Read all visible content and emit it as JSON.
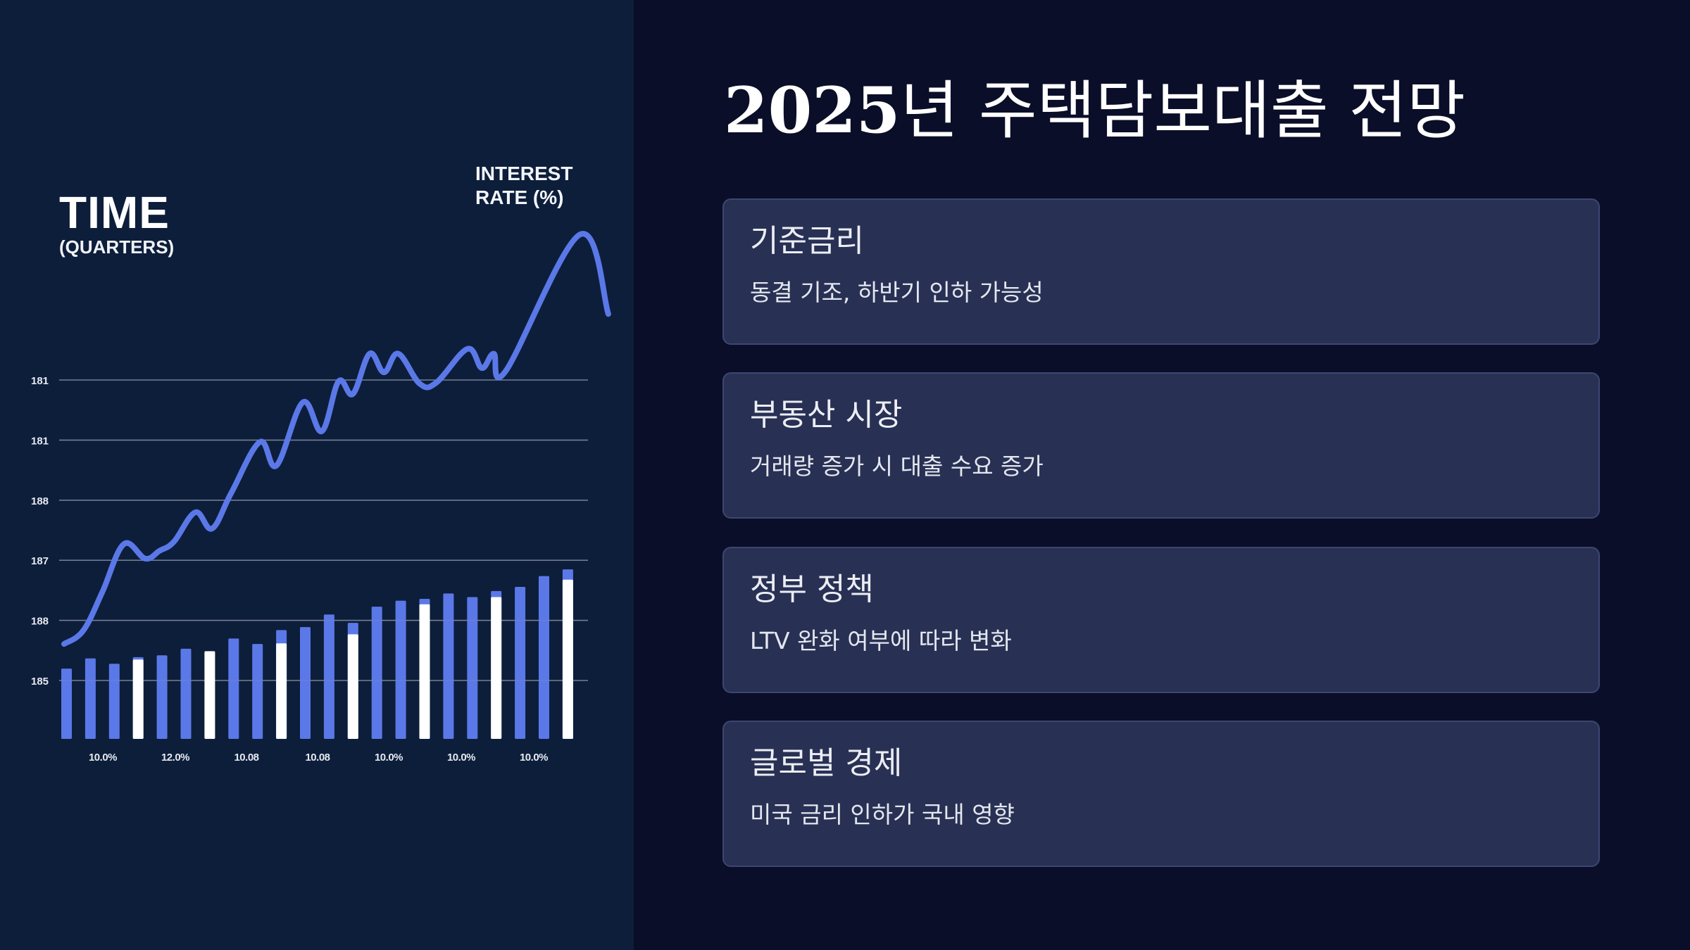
{
  "title": {
    "year": "2025",
    "rest": "년 주택담보대출 전망"
  },
  "cards": [
    {
      "title": "기준금리",
      "description": "동결 기조, 하반기 인하 가능성"
    },
    {
      "title": "부동산 시장",
      "description": "거래량 증가 시 대출 수요 증가"
    },
    {
      "title": "정부 정책",
      "description": "LTV 완화 여부에 따라 변화"
    },
    {
      "title": "글로벌 경제",
      "description": "미국 금리 인하가 국내 영향"
    }
  ],
  "colors": {
    "left_bg": "#0d1e3a",
    "right_bg": "#0a0e28",
    "card_bg": "#283154",
    "card_border": "#3c4670",
    "accent_blue": "#5b78e8",
    "bar_white": "#ffffff",
    "gridline": "#8a93a8"
  },
  "chart_data": {
    "type": "bar",
    "title": "",
    "axis_titles": {
      "time_main": "TIME",
      "time_sub": "(QUARTERS)",
      "rate_line1": "INTEREST",
      "rate_line2": "RATE (%)"
    },
    "xlabel": "TIME (QUARTERS)",
    "ylabel": "INTEREST RATE (%)",
    "y_tick_labels": [
      "181",
      "181",
      "188",
      "187",
      "188",
      "185"
    ],
    "x_tick_labels": [
      "10.0%",
      "12.0%",
      "10.08",
      "10.08",
      "10.0%",
      "10.0%",
      "10.0%"
    ],
    "grid": true,
    "legend": null,
    "bars": [
      {
        "index": 1,
        "blue": 0.2,
        "white": null
      },
      {
        "index": 2,
        "blue": 0.37,
        "white": null
      },
      {
        "index": 3,
        "blue": 0.28,
        "white": null
      },
      {
        "index": 4,
        "blue": 0.39,
        "white": 0.35
      },
      {
        "index": 5,
        "blue": 0.42,
        "white": null
      },
      {
        "index": 6,
        "blue": 0.53,
        "white": null
      },
      {
        "index": 7,
        "blue": null,
        "white": 0.49
      },
      {
        "index": 8,
        "blue": 0.7,
        "white": null
      },
      {
        "index": 9,
        "blue": 0.61,
        "white": null
      },
      {
        "index": 10,
        "blue": 0.84,
        "white": 0.62
      },
      {
        "index": 11,
        "blue": 0.89,
        "white": null
      },
      {
        "index": 12,
        "blue": 1.1,
        "white": null
      },
      {
        "index": 13,
        "blue": 0.96,
        "white": 0.77
      },
      {
        "index": 14,
        "blue": 1.23,
        "white": null
      },
      {
        "index": 15,
        "blue": 1.33,
        "white": null
      },
      {
        "index": 16,
        "blue": 1.36,
        "white": 1.27
      },
      {
        "index": 17,
        "blue": 1.45,
        "white": null
      },
      {
        "index": 18,
        "blue": 1.39,
        "white": null
      },
      {
        "index": 19,
        "blue": 1.49,
        "white": 1.39
      },
      {
        "index": 20,
        "blue": 1.56,
        "white": null
      },
      {
        "index": 21,
        "blue": 1.74,
        "white": null
      },
      {
        "index": 22,
        "blue": 1.85,
        "white": 1.68
      }
    ],
    "bar_units_note": "bar heights expressed in gridline units above baseline (1 unit = one gridline spacing)",
    "line_series": {
      "name": "Interest Rate",
      "points": [
        [
          0.0,
          1.58
        ],
        [
          0.8,
          1.8
        ],
        [
          1.6,
          2.44
        ],
        [
          2.5,
          3.24
        ],
        [
          3.4,
          3.0
        ],
        [
          4.0,
          3.13
        ],
        [
          4.6,
          3.28
        ],
        [
          5.5,
          3.77
        ],
        [
          6.2,
          3.5
        ],
        [
          7.0,
          4.09
        ],
        [
          8.2,
          4.94
        ],
        [
          8.9,
          4.55
        ],
        [
          10.0,
          5.6
        ],
        [
          10.8,
          5.12
        ],
        [
          11.5,
          5.95
        ],
        [
          12.1,
          5.74
        ],
        [
          12.8,
          6.41
        ],
        [
          13.4,
          6.1
        ],
        [
          14.0,
          6.41
        ],
        [
          14.9,
          5.91
        ],
        [
          15.6,
          5.93
        ],
        [
          16.9,
          6.49
        ],
        [
          17.5,
          6.17
        ],
        [
          18.0,
          6.41
        ],
        [
          18.5,
          6.12
        ],
        [
          21.6,
          8.39
        ],
        [
          22.8,
          7.07
        ]
      ],
      "points_note": "x = bar index position, y = gridline units above baseline"
    }
  }
}
